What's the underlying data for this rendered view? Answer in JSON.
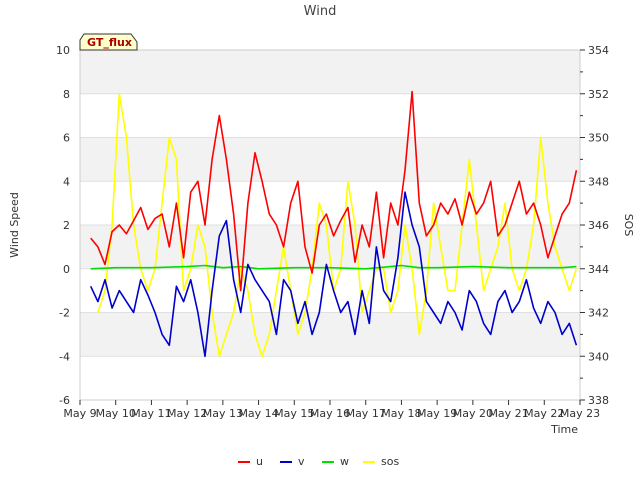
{
  "chart_data": {
    "type": "line",
    "title": "Wind",
    "badge": "GT_flux",
    "xlabel": "Time",
    "ylabel": "Wind Speed",
    "y2label": "SOS",
    "ylim": [
      -6,
      10
    ],
    "y2lim": [
      338,
      354
    ],
    "yticks": [
      "-6",
      "-4",
      "-2",
      "0",
      "2",
      "4",
      "6",
      "8",
      "10"
    ],
    "y2ticks": [
      "338",
      "340",
      "342",
      "344",
      "346",
      "348",
      "350",
      "352",
      "354"
    ],
    "xticks": [
      "May 9",
      "May 10",
      "May 11",
      "May 12",
      "May 13",
      "May 14",
      "May 15",
      "May 16",
      "May 17",
      "May 18",
      "May 19",
      "May 20",
      "May 21",
      "May 22",
      "May 23"
    ],
    "xlim": [
      0,
      14
    ],
    "legend": "bottom-center",
    "series": [
      {
        "name": "u",
        "color": "#ff0000",
        "axis": "left",
        "x": [
          0.3,
          0.5,
          0.7,
          0.9,
          1.1,
          1.3,
          1.5,
          1.7,
          1.9,
          2.1,
          2.3,
          2.5,
          2.7,
          2.9,
          3.1,
          3.3,
          3.5,
          3.7,
          3.9,
          4.1,
          4.3,
          4.5,
          4.7,
          4.9,
          5.1,
          5.3,
          5.5,
          5.7,
          5.9,
          6.1,
          6.3,
          6.5,
          6.7,
          6.9,
          7.1,
          7.3,
          7.5,
          7.7,
          7.9,
          8.1,
          8.3,
          8.5,
          8.7,
          8.9,
          9.1,
          9.3,
          9.5,
          9.7,
          9.9,
          10.1,
          10.3,
          10.5,
          10.7,
          10.9,
          11.1,
          11.3,
          11.5,
          11.7,
          11.9,
          12.1,
          12.3,
          12.5,
          12.7,
          12.9,
          13.1,
          13.3,
          13.5,
          13.7,
          13.9
        ],
        "y": [
          1.4,
          1.0,
          0.2,
          1.7,
          2.0,
          1.6,
          2.2,
          2.8,
          1.8,
          2.3,
          2.5,
          1.0,
          3.0,
          0.5,
          3.5,
          4.0,
          2.0,
          5.0,
          7.0,
          5.0,
          2.5,
          -1.0,
          3.0,
          5.3,
          4.0,
          2.5,
          2.0,
          1.0,
          3.0,
          4.0,
          1.0,
          -0.2,
          2.0,
          2.5,
          1.5,
          2.2,
          2.8,
          0.3,
          2.0,
          1.0,
          3.5,
          0.5,
          3.0,
          2.0,
          4.5,
          8.1,
          3.0,
          1.5,
          2.0,
          3.0,
          2.5,
          3.2,
          2.0,
          3.5,
          2.5,
          3.0,
          4.0,
          1.5,
          2.0,
          3.0,
          4.0,
          2.5,
          3.0,
          2.0,
          0.5,
          1.5,
          2.5,
          3.0,
          4.5
        ]
      },
      {
        "name": "v",
        "color": "#0000cc",
        "axis": "left",
        "x": [
          0.3,
          0.5,
          0.7,
          0.9,
          1.1,
          1.3,
          1.5,
          1.7,
          1.9,
          2.1,
          2.3,
          2.5,
          2.7,
          2.9,
          3.1,
          3.3,
          3.5,
          3.7,
          3.9,
          4.1,
          4.3,
          4.5,
          4.7,
          4.9,
          5.1,
          5.3,
          5.5,
          5.7,
          5.9,
          6.1,
          6.3,
          6.5,
          6.7,
          6.9,
          7.1,
          7.3,
          7.5,
          7.7,
          7.9,
          8.1,
          8.3,
          8.5,
          8.7,
          8.9,
          9.1,
          9.3,
          9.5,
          9.7,
          9.9,
          10.1,
          10.3,
          10.5,
          10.7,
          10.9,
          11.1,
          11.3,
          11.5,
          11.7,
          11.9,
          12.1,
          12.3,
          12.5,
          12.7,
          12.9,
          13.1,
          13.3,
          13.5,
          13.7,
          13.9
        ],
        "y": [
          -0.8,
          -1.5,
          -0.5,
          -1.8,
          -1.0,
          -1.5,
          -2.0,
          -0.5,
          -1.2,
          -2.0,
          -3.0,
          -3.5,
          -0.8,
          -1.5,
          -0.5,
          -2.0,
          -4.0,
          -1.0,
          1.5,
          2.2,
          -0.5,
          -2.0,
          0.2,
          -0.5,
          -1.0,
          -1.5,
          -3.0,
          -0.5,
          -1.0,
          -2.5,
          -1.5,
          -3.0,
          -2.0,
          0.2,
          -1.0,
          -2.0,
          -1.5,
          -3.0,
          -1.0,
          -2.5,
          1.0,
          -1.0,
          -1.5,
          0.5,
          3.5,
          2.0,
          1.0,
          -1.5,
          -2.0,
          -2.5,
          -1.5,
          -2.0,
          -2.8,
          -1.0,
          -1.5,
          -2.5,
          -3.0,
          -1.5,
          -1.0,
          -2.0,
          -1.5,
          -0.5,
          -1.8,
          -2.5,
          -1.5,
          -2.0,
          -3.0,
          -2.5,
          -3.5
        ]
      },
      {
        "name": "w",
        "color": "#00dd00",
        "axis": "left",
        "x": [
          0.3,
          1.0,
          2.0,
          3.0,
          3.5,
          4.0,
          4.5,
          5.0,
          6.0,
          7.0,
          8.0,
          9.0,
          9.5,
          10.0,
          11.0,
          12.0,
          13.0,
          13.5,
          13.9
        ],
        "y": [
          0.0,
          0.05,
          0.05,
          0.1,
          0.15,
          0.05,
          0.1,
          0.0,
          0.05,
          0.05,
          0.0,
          0.15,
          0.05,
          0.05,
          0.1,
          0.05,
          0.05,
          0.05,
          0.1
        ]
      },
      {
        "name": "sos",
        "color": "#ffff00",
        "axis": "right",
        "x": [
          0.5,
          0.7,
          0.9,
          1.1,
          1.3,
          1.5,
          1.7,
          1.9,
          2.1,
          2.3,
          2.5,
          2.7,
          2.9,
          3.1,
          3.3,
          3.5,
          3.7,
          3.9,
          4.1,
          4.3,
          4.5,
          4.7,
          4.9,
          5.1,
          5.3,
          5.5,
          5.7,
          5.9,
          6.1,
          6.3,
          6.5,
          6.7,
          6.9,
          7.1,
          7.3,
          7.5,
          7.7,
          7.9,
          8.1,
          8.3,
          8.5,
          8.7,
          8.9,
          9.1,
          9.3,
          9.5,
          9.7,
          9.9,
          10.1,
          10.3,
          10.5,
          10.7,
          10.9,
          11.1,
          11.3,
          11.5,
          11.7,
          11.9,
          12.1,
          12.3,
          12.5,
          12.7,
          12.9,
          13.1,
          13.3,
          13.5,
          13.7,
          13.9
        ],
        "y": [
          342,
          343,
          346,
          352,
          350,
          346,
          344,
          343,
          344,
          347,
          350,
          349,
          343,
          344,
          346,
          345,
          342,
          340,
          341,
          342,
          344,
          343,
          341,
          340,
          341,
          343,
          345,
          343,
          341,
          342,
          344,
          347,
          346,
          343,
          344,
          348,
          346,
          342,
          343,
          344,
          344,
          342,
          343,
          346,
          344,
          341,
          343,
          347,
          345,
          343,
          343,
          346,
          349,
          346,
          343,
          344,
          345,
          347,
          344,
          343,
          344,
          346,
          350,
          347,
          345,
          344,
          343,
          344
        ]
      }
    ]
  }
}
